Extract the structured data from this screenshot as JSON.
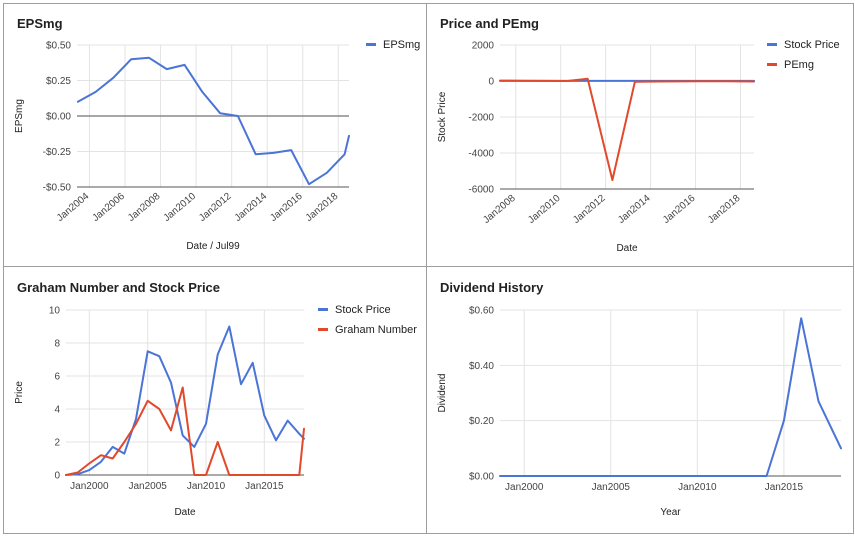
{
  "charts": [
    {
      "title": "EPSmg",
      "chart_data": {
        "type": "line",
        "xlabel": "Date / Jul99",
        "ylabel": "EPSmg",
        "xlim": [
          2003.3,
          2018.6
        ],
        "ylim": [
          -0.5,
          0.5
        ],
        "x_ticks": [
          2004,
          2006,
          2008,
          2010,
          2012,
          2014,
          2016,
          2018
        ],
        "x_tick_labels": [
          "Jan2004",
          "Jan2006",
          "Jan2008",
          "Jan2010",
          "Jan2012",
          "Jan2014",
          "Jan2016",
          "Jan2018"
        ],
        "y_ticks": [
          0.5,
          0.25,
          0,
          -0.25,
          -0.5
        ],
        "y_tick_labels": [
          "$0.50",
          "$0.25",
          "$0.00",
          "-$0.25",
          "-$0.50"
        ],
        "zero_line": true,
        "grid": true,
        "legend_position": "top-right",
        "series": [
          {
            "name": "EPSmg",
            "color": "#4a74d6",
            "x": [
              2003.35,
              2004.35,
              2005.35,
              2006.35,
              2007.35,
              2008.35,
              2009.35,
              2010.35,
              2011.35,
              2012.35,
              2013.35,
              2014.35,
              2015.35,
              2016.35,
              2017.35,
              2018.35,
              2018.6
            ],
            "y": [
              0.1,
              0.17,
              0.27,
              0.4,
              0.41,
              0.33,
              0.36,
              0.17,
              0.02,
              0.0,
              -0.27,
              -0.26,
              -0.24,
              -0.48,
              -0.4,
              -0.27,
              -0.14
            ]
          }
        ]
      }
    },
    {
      "title": "Price and PEmg",
      "chart_data": {
        "type": "line",
        "xlabel": "Date",
        "ylabel": "Stock Price",
        "xlim": [
          2007.3,
          2018.6
        ],
        "ylim": [
          -6000,
          2000
        ],
        "x_ticks": [
          2008,
          2010,
          2012,
          2014,
          2016,
          2018
        ],
        "x_tick_labels": [
          "Jan2008",
          "Jan2010",
          "Jan2012",
          "Jan2014",
          "Jan2016",
          "Jan2018"
        ],
        "y_ticks": [
          2000,
          0,
          -2000,
          -4000,
          -6000
        ],
        "y_tick_labels": [
          "2000",
          "0",
          "-2000",
          "-4000",
          "-6000"
        ],
        "grid": true,
        "legend_position": "top-right",
        "series": [
          {
            "name": "Stock Price",
            "color": "#4a74d6",
            "x": [
              2007.3,
              2008.3,
              2009.3,
              2010.3,
              2011.3,
              2012.3,
              2013.3,
              2014.3,
              2015.3,
              2016.3,
              2017.3,
              2018.6
            ],
            "y": [
              5,
              5,
              5,
              5,
              8,
              8,
              8,
              5,
              5,
              5,
              5,
              5
            ]
          },
          {
            "name": "PEmg",
            "color": "#e2492b",
            "x": [
              2007.3,
              2008.3,
              2009.3,
              2010.3,
              2011.2,
              2012.3,
              2013.3,
              2014.3,
              2015.3,
              2016.3,
              2017.3,
              2018.6
            ],
            "y": [
              20,
              10,
              5,
              0,
              120,
              -5500,
              -40,
              -30,
              -20,
              -10,
              -10,
              -30
            ]
          }
        ]
      }
    },
    {
      "title": "Graham Number and Stock Price",
      "chart_data": {
        "type": "line",
        "xlabel": "Date",
        "ylabel": "Price",
        "xlim": [
          1998.0,
          2018.4
        ],
        "ylim": [
          0,
          10
        ],
        "x_ticks": [
          2000,
          2005,
          2010,
          2015
        ],
        "x_tick_labels": [
          "Jan2000",
          "Jan2005",
          "Jan2010",
          "Jan2015"
        ],
        "y_ticks": [
          10,
          8,
          6,
          4,
          2,
          0
        ],
        "y_tick_labels": [
          "10",
          "8",
          "6",
          "4",
          "2",
          "0"
        ],
        "grid": true,
        "legend_position": "top-right",
        "series": [
          {
            "name": "Stock Price",
            "color": "#4a74d6",
            "x": [
              1998.0,
              1999.0,
              2000.0,
              2001.0,
              2002.0,
              2003.0,
              2004.0,
              2005.0,
              2006.0,
              2007.0,
              2008.0,
              2009.0,
              2010.0,
              2011.0,
              2012.0,
              2013.0,
              2014.0,
              2015.0,
              2016.0,
              2017.0,
              2018.0,
              2018.4
            ],
            "y": [
              0.0,
              0.05,
              0.3,
              0.8,
              1.7,
              1.3,
              3.4,
              7.5,
              7.2,
              5.6,
              2.4,
              1.7,
              3.1,
              7.3,
              9.0,
              5.5,
              6.8,
              3.6,
              2.1,
              3.3,
              2.5,
              2.2
            ]
          },
          {
            "name": "Graham Number",
            "color": "#e2492b",
            "x": [
              1998.0,
              1999.0,
              2000.0,
              2001.0,
              2002.0,
              2003.0,
              2004.0,
              2005.0,
              2006.0,
              2007.0,
              2008.0,
              2009.0,
              2010.0,
              2011.0,
              2012.0,
              2013.0,
              2014.0,
              2015.0,
              2016.0,
              2017.0,
              2018.0,
              2018.4
            ],
            "y": [
              0.0,
              0.15,
              0.7,
              1.2,
              1.0,
              2.0,
              3.1,
              4.5,
              4.0,
              2.7,
              5.3,
              0.0,
              0.0,
              2.0,
              0.0,
              0.0,
              0.0,
              0.0,
              0.0,
              0.0,
              0.0,
              2.8
            ]
          }
        ]
      }
    },
    {
      "title": "Dividend History",
      "chart_data": {
        "type": "line",
        "xlabel": "Year",
        "ylabel": "Dividend",
        "xlim": [
          1998.6,
          2018.3
        ],
        "ylim": [
          0,
          0.6
        ],
        "x_ticks": [
          2000,
          2005,
          2010,
          2015
        ],
        "x_tick_labels": [
          "Jan2000",
          "Jan2005",
          "Jan2010",
          "Jan2015"
        ],
        "y_ticks": [
          0.6,
          0.4,
          0.2,
          0
        ],
        "y_tick_labels": [
          "$0.60",
          "$0.40",
          "$0.20",
          "$0.00"
        ],
        "grid": true,
        "legend_position": "none",
        "series": [
          {
            "name": "",
            "color": "#4a74d6",
            "x": [
              1998.6,
              2000,
              2005,
              2010,
              2014,
              2015,
              2016,
              2017,
              2018.3
            ],
            "y": [
              0,
              0,
              0,
              0,
              0,
              0.2,
              0.57,
              0.27,
              0.1
            ]
          }
        ]
      }
    }
  ]
}
